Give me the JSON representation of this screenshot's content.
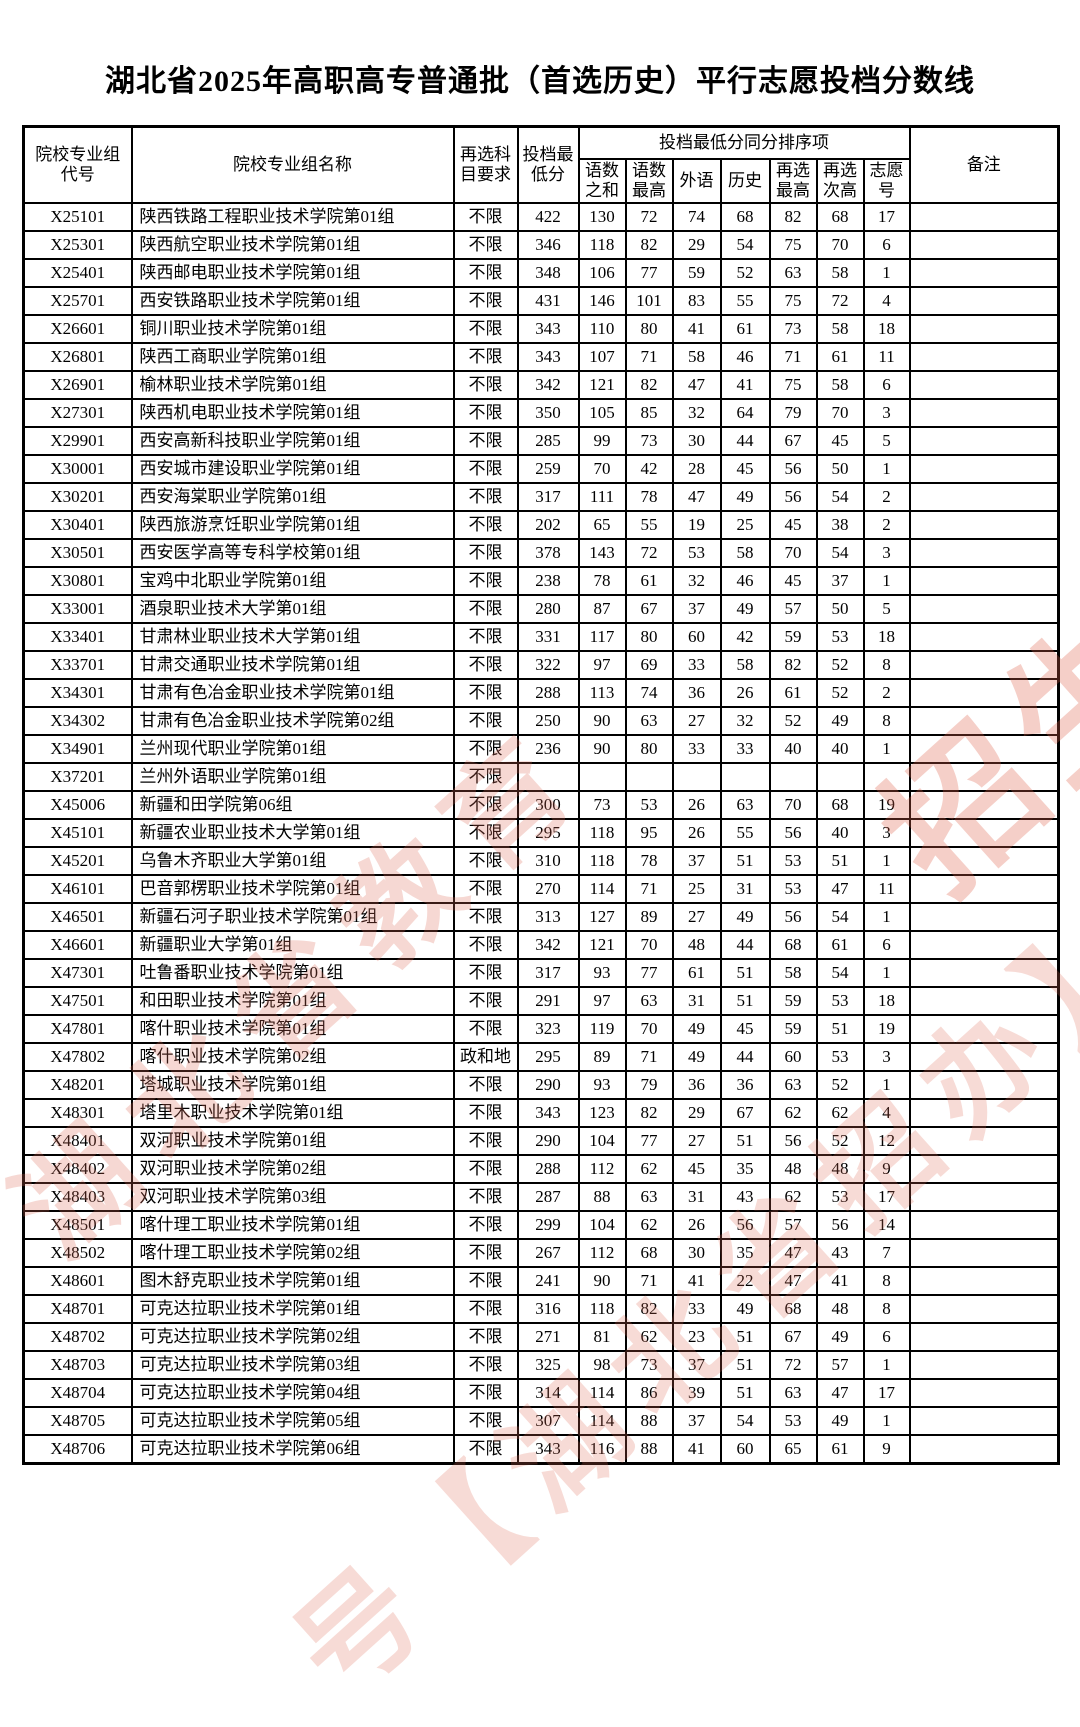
{
  "title": "湖北省2025年高职高专普通批（首选历史）平行志愿投档分数线",
  "watermark": {
    "line1": "湖北省教育",
    "line2": "号【湖北省招办】",
    "line3": "招生】",
    "color": "#dc6a54"
  },
  "table": {
    "headers": {
      "code": "院校专业组\n代号",
      "name": "院校专业组名称",
      "subject": "再选科\n目要求",
      "min_score": "投档最\n低分",
      "sort_group": "投档最低分同分排序项",
      "sort_cols": [
        "语数\n之和",
        "语数\n最高",
        "外语",
        "历史",
        "再选\n最高",
        "再选\n次高",
        "志愿\n号"
      ],
      "remark": "备注"
    },
    "rows": [
      {
        "code": "X25101",
        "name": "陕西铁路工程职业技术学院第01组",
        "subject": "不限",
        "min": "422",
        "s": [
          "130",
          "72",
          "74",
          "68",
          "82",
          "68",
          "17"
        ]
      },
      {
        "code": "X25301",
        "name": "陕西航空职业技术学院第01组",
        "subject": "不限",
        "min": "346",
        "s": [
          "118",
          "82",
          "29",
          "54",
          "75",
          "70",
          "6"
        ]
      },
      {
        "code": "X25401",
        "name": "陕西邮电职业技术学院第01组",
        "subject": "不限",
        "min": "348",
        "s": [
          "106",
          "77",
          "59",
          "52",
          "63",
          "58",
          "1"
        ]
      },
      {
        "code": "X25701",
        "name": "西安铁路职业技术学院第01组",
        "subject": "不限",
        "min": "431",
        "s": [
          "146",
          "101",
          "83",
          "55",
          "75",
          "72",
          "4"
        ]
      },
      {
        "code": "X26601",
        "name": "铜川职业技术学院第01组",
        "subject": "不限",
        "min": "343",
        "s": [
          "110",
          "80",
          "41",
          "61",
          "73",
          "58",
          "18"
        ]
      },
      {
        "code": "X26801",
        "name": "陕西工商职业学院第01组",
        "subject": "不限",
        "min": "343",
        "s": [
          "107",
          "71",
          "58",
          "46",
          "71",
          "61",
          "11"
        ]
      },
      {
        "code": "X26901",
        "name": "榆林职业技术学院第01组",
        "subject": "不限",
        "min": "342",
        "s": [
          "121",
          "82",
          "47",
          "41",
          "75",
          "58",
          "6"
        ]
      },
      {
        "code": "X27301",
        "name": "陕西机电职业技术学院第01组",
        "subject": "不限",
        "min": "350",
        "s": [
          "105",
          "85",
          "32",
          "64",
          "79",
          "70",
          "3"
        ]
      },
      {
        "code": "X29901",
        "name": "西安高新科技职业学院第01组",
        "subject": "不限",
        "min": "285",
        "s": [
          "99",
          "73",
          "30",
          "44",
          "67",
          "45",
          "5"
        ]
      },
      {
        "code": "X30001",
        "name": "西安城市建设职业学院第01组",
        "subject": "不限",
        "min": "259",
        "s": [
          "70",
          "42",
          "28",
          "45",
          "56",
          "50",
          "1"
        ]
      },
      {
        "code": "X30201",
        "name": "西安海棠职业学院第01组",
        "subject": "不限",
        "min": "317",
        "s": [
          "111",
          "78",
          "47",
          "49",
          "56",
          "54",
          "2"
        ]
      },
      {
        "code": "X30401",
        "name": "陕西旅游烹饪职业学院第01组",
        "subject": "不限",
        "min": "202",
        "s": [
          "65",
          "55",
          "19",
          "25",
          "45",
          "38",
          "2"
        ]
      },
      {
        "code": "X30501",
        "name": "西安医学高等专科学校第01组",
        "subject": "不限",
        "min": "378",
        "s": [
          "143",
          "72",
          "53",
          "58",
          "70",
          "54",
          "3"
        ]
      },
      {
        "code": "X30801",
        "name": "宝鸡中北职业学院第01组",
        "subject": "不限",
        "min": "238",
        "s": [
          "78",
          "61",
          "32",
          "46",
          "45",
          "37",
          "1"
        ]
      },
      {
        "code": "X33001",
        "name": "酒泉职业技术大学第01组",
        "subject": "不限",
        "min": "280",
        "s": [
          "87",
          "67",
          "37",
          "49",
          "57",
          "50",
          "5"
        ]
      },
      {
        "code": "X33401",
        "name": "甘肃林业职业技术大学第01组",
        "subject": "不限",
        "min": "331",
        "s": [
          "117",
          "80",
          "60",
          "42",
          "59",
          "53",
          "18"
        ]
      },
      {
        "code": "X33701",
        "name": "甘肃交通职业技术学院第01组",
        "subject": "不限",
        "min": "322",
        "s": [
          "97",
          "69",
          "33",
          "58",
          "82",
          "52",
          "8"
        ]
      },
      {
        "code": "X34301",
        "name": "甘肃有色冶金职业技术学院第01组",
        "subject": "不限",
        "min": "288",
        "s": [
          "113",
          "74",
          "36",
          "26",
          "61",
          "52",
          "2"
        ]
      },
      {
        "code": "X34302",
        "name": "甘肃有色冶金职业技术学院第02组",
        "subject": "不限",
        "min": "250",
        "s": [
          "90",
          "63",
          "27",
          "32",
          "52",
          "49",
          "8"
        ]
      },
      {
        "code": "X34901",
        "name": "兰州现代职业学院第01组",
        "subject": "不限",
        "min": "236",
        "s": [
          "90",
          "80",
          "33",
          "33",
          "40",
          "40",
          "1"
        ]
      },
      {
        "code": "X37201",
        "name": "兰州外语职业学院第01组",
        "subject": "不限",
        "min": "",
        "s": [
          "",
          "",
          "",
          "",
          "",
          "",
          ""
        ]
      },
      {
        "code": "X45006",
        "name": "新疆和田学院第06组",
        "subject": "不限",
        "min": "300",
        "s": [
          "73",
          "53",
          "26",
          "63",
          "70",
          "68",
          "19"
        ]
      },
      {
        "code": "X45101",
        "name": "新疆农业职业技术大学第01组",
        "subject": "不限",
        "min": "295",
        "s": [
          "118",
          "95",
          "26",
          "55",
          "56",
          "40",
          "3"
        ]
      },
      {
        "code": "X45201",
        "name": "乌鲁木齐职业大学第01组",
        "subject": "不限",
        "min": "310",
        "s": [
          "118",
          "78",
          "37",
          "51",
          "53",
          "51",
          "1"
        ]
      },
      {
        "code": "X46101",
        "name": "巴音郭楞职业技术学院第01组",
        "subject": "不限",
        "min": "270",
        "s": [
          "114",
          "71",
          "25",
          "31",
          "53",
          "47",
          "11"
        ]
      },
      {
        "code": "X46501",
        "name": "新疆石河子职业技术学院第01组",
        "subject": "不限",
        "min": "313",
        "s": [
          "127",
          "89",
          "27",
          "49",
          "56",
          "54",
          "1"
        ]
      },
      {
        "code": "X46601",
        "name": "新疆职业大学第01组",
        "subject": "不限",
        "min": "342",
        "s": [
          "121",
          "70",
          "48",
          "44",
          "68",
          "61",
          "6"
        ]
      },
      {
        "code": "X47301",
        "name": "吐鲁番职业技术学院第01组",
        "subject": "不限",
        "min": "317",
        "s": [
          "93",
          "77",
          "61",
          "51",
          "58",
          "54",
          "1"
        ]
      },
      {
        "code": "X47501",
        "name": "和田职业技术学院第01组",
        "subject": "不限",
        "min": "291",
        "s": [
          "97",
          "63",
          "31",
          "51",
          "59",
          "53",
          "18"
        ]
      },
      {
        "code": "X47801",
        "name": "喀什职业技术学院第01组",
        "subject": "不限",
        "min": "323",
        "s": [
          "119",
          "70",
          "49",
          "45",
          "59",
          "51",
          "19"
        ]
      },
      {
        "code": "X47802",
        "name": "喀什职业技术学院第02组",
        "subject": "政和地",
        "min": "295",
        "s": [
          "89",
          "71",
          "49",
          "44",
          "60",
          "53",
          "3"
        ]
      },
      {
        "code": "X48201",
        "name": "塔城职业技术学院第01组",
        "subject": "不限",
        "min": "290",
        "s": [
          "93",
          "79",
          "36",
          "36",
          "63",
          "52",
          "1"
        ]
      },
      {
        "code": "X48301",
        "name": "塔里木职业技术学院第01组",
        "subject": "不限",
        "min": "343",
        "s": [
          "123",
          "82",
          "29",
          "67",
          "62",
          "62",
          "4"
        ]
      },
      {
        "code": "X48401",
        "name": "双河职业技术学院第01组",
        "subject": "不限",
        "min": "290",
        "s": [
          "104",
          "77",
          "27",
          "51",
          "56",
          "52",
          "12"
        ]
      },
      {
        "code": "X48402",
        "name": "双河职业技术学院第02组",
        "subject": "不限",
        "min": "288",
        "s": [
          "112",
          "62",
          "45",
          "35",
          "48",
          "48",
          "9"
        ]
      },
      {
        "code": "X48403",
        "name": "双河职业技术学院第03组",
        "subject": "不限",
        "min": "287",
        "s": [
          "88",
          "63",
          "31",
          "43",
          "62",
          "53",
          "17"
        ]
      },
      {
        "code": "X48501",
        "name": "喀什理工职业技术学院第01组",
        "subject": "不限",
        "min": "299",
        "s": [
          "104",
          "62",
          "26",
          "56",
          "57",
          "56",
          "14"
        ]
      },
      {
        "code": "X48502",
        "name": "喀什理工职业技术学院第02组",
        "subject": "不限",
        "min": "267",
        "s": [
          "112",
          "68",
          "30",
          "35",
          "47",
          "43",
          "7"
        ]
      },
      {
        "code": "X48601",
        "name": "图木舒克职业技术学院第01组",
        "subject": "不限",
        "min": "241",
        "s": [
          "90",
          "71",
          "41",
          "22",
          "47",
          "41",
          "8"
        ]
      },
      {
        "code": "X48701",
        "name": "可克达拉职业技术学院第01组",
        "subject": "不限",
        "min": "316",
        "s": [
          "118",
          "82",
          "33",
          "49",
          "68",
          "48",
          "8"
        ]
      },
      {
        "code": "X48702",
        "name": "可克达拉职业技术学院第02组",
        "subject": "不限",
        "min": "271",
        "s": [
          "81",
          "62",
          "23",
          "51",
          "67",
          "49",
          "6"
        ]
      },
      {
        "code": "X48703",
        "name": "可克达拉职业技术学院第03组",
        "subject": "不限",
        "min": "325",
        "s": [
          "98",
          "73",
          "37",
          "51",
          "72",
          "57",
          "1"
        ]
      },
      {
        "code": "X48704",
        "name": "可克达拉职业技术学院第04组",
        "subject": "不限",
        "min": "314",
        "s": [
          "114",
          "86",
          "39",
          "51",
          "63",
          "47",
          "17"
        ]
      },
      {
        "code": "X48705",
        "name": "可克达拉职业技术学院第05组",
        "subject": "不限",
        "min": "307",
        "s": [
          "114",
          "88",
          "37",
          "54",
          "53",
          "49",
          "1"
        ]
      },
      {
        "code": "X48706",
        "name": "可克达拉职业技术学院第06组",
        "subject": "不限",
        "min": "343",
        "s": [
          "116",
          "88",
          "41",
          "60",
          "65",
          "61",
          "9"
        ]
      }
    ]
  }
}
